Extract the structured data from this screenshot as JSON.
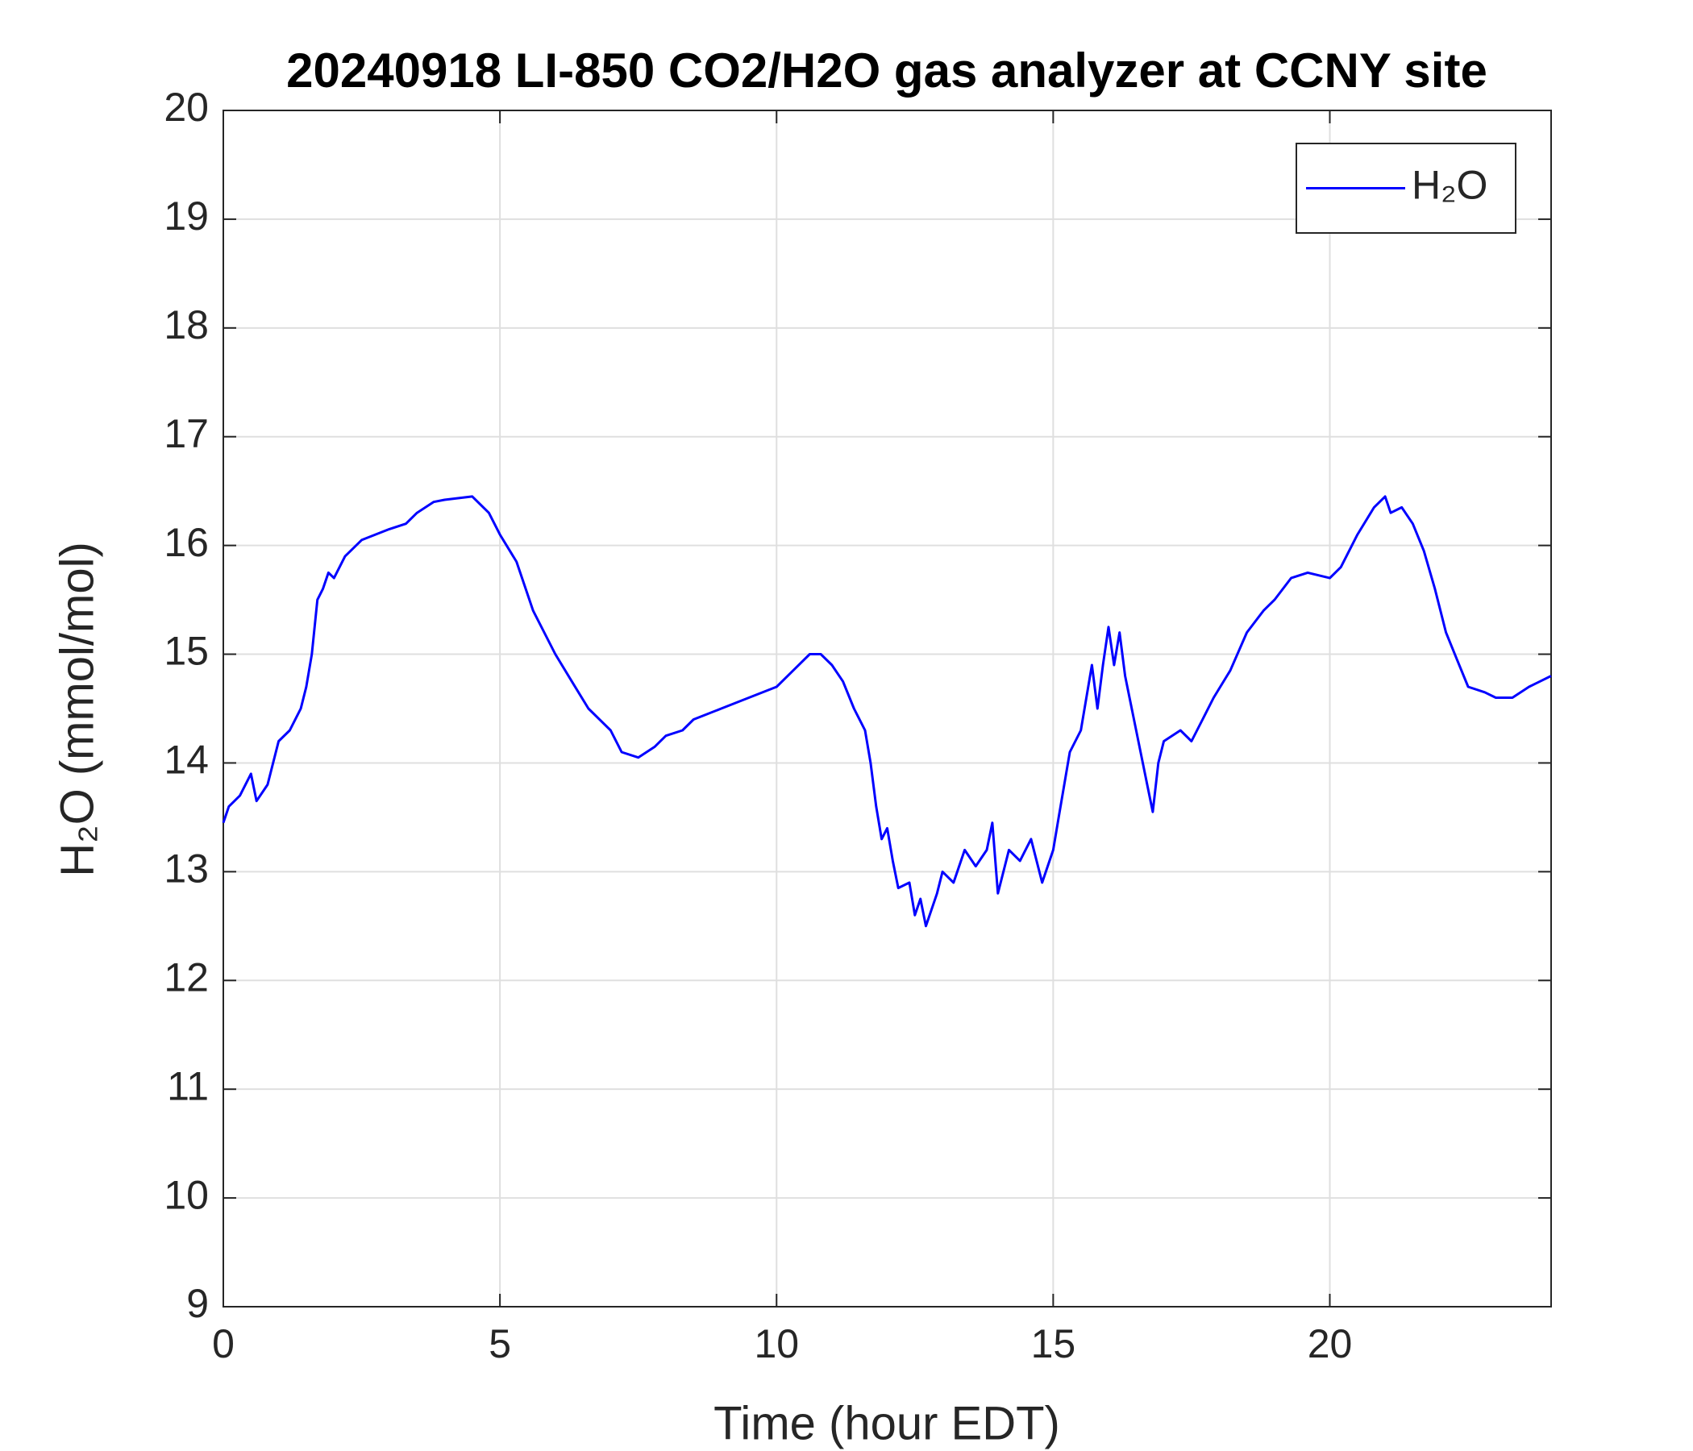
{
  "chart_data": {
    "type": "line",
    "title": "20240918 LI-850 CO2/H2O gas analyzer at CCNY site",
    "x_label": "Time (hour EDT)",
    "y_label": "H₂O (mmol/mol)",
    "xlim": [
      0,
      24
    ],
    "xticks": [
      0,
      5,
      10,
      15,
      20
    ],
    "ylim": [
      9,
      20
    ],
    "yticks": [
      9,
      10,
      11,
      12,
      13,
      14,
      15,
      16,
      17,
      18,
      19,
      20
    ],
    "grid": true,
    "legend": "upper right",
    "x": [
      0,
      0.1,
      0.3,
      0.5,
      0.6,
      0.8,
      1.0,
      1.2,
      1.4,
      1.5,
      1.6,
      1.7,
      1.8,
      1.9,
      2.0,
      2.2,
      2.5,
      3.0,
      3.3,
      3.5,
      3.8,
      4.0,
      4.5,
      4.8,
      5.0,
      5.3,
      5.6,
      6.0,
      6.3,
      6.6,
      7.0,
      7.2,
      7.5,
      7.8,
      8.0,
      8.3,
      8.5,
      9.0,
      9.5,
      10.0,
      10.3,
      10.6,
      10.8,
      11.0,
      11.2,
      11.4,
      11.6,
      11.7,
      11.8,
      11.9,
      12.0,
      12.1,
      12.2,
      12.4,
      12.5,
      12.6,
      12.7,
      12.9,
      13.0,
      13.2,
      13.4,
      13.6,
      13.8,
      13.9,
      14.0,
      14.2,
      14.4,
      14.6,
      14.8,
      15.0,
      15.1,
      15.3,
      15.5,
      15.7,
      15.8,
      15.9,
      16.0,
      16.1,
      16.2,
      16.3,
      16.5,
      16.7,
      16.8,
      16.9,
      17.0,
      17.3,
      17.5,
      17.7,
      17.9,
      18.2,
      18.5,
      18.8,
      19.0,
      19.3,
      19.6,
      20.0,
      20.2,
      20.5,
      20.8,
      21.0,
      21.1,
      21.3,
      21.5,
      21.7,
      21.9,
      22.1,
      22.3,
      22.5,
      22.8,
      23.0,
      23.3,
      23.6,
      24.0
    ],
    "series": [
      {
        "name": "H₂O",
        "color": "#0000ff",
        "values": [
          13.45,
          13.6,
          13.7,
          13.9,
          13.65,
          13.8,
          14.2,
          14.3,
          14.5,
          14.7,
          15.0,
          15.5,
          15.6,
          15.75,
          15.7,
          15.9,
          16.05,
          16.15,
          16.2,
          16.3,
          16.4,
          16.42,
          16.45,
          16.3,
          16.1,
          15.85,
          15.4,
          15.0,
          14.75,
          14.5,
          14.3,
          14.1,
          14.05,
          14.15,
          14.25,
          14.3,
          14.4,
          14.5,
          14.6,
          14.7,
          14.85,
          15.0,
          15.0,
          14.9,
          14.75,
          14.5,
          14.3,
          14.0,
          13.6,
          13.3,
          13.4,
          13.1,
          12.85,
          12.9,
          12.6,
          12.75,
          12.5,
          12.8,
          13.0,
          12.9,
          13.2,
          13.05,
          13.2,
          13.45,
          12.8,
          13.2,
          13.1,
          13.3,
          12.9,
          13.2,
          13.5,
          14.1,
          14.3,
          14.9,
          14.5,
          14.9,
          15.25,
          14.9,
          15.2,
          14.8,
          14.3,
          13.8,
          13.55,
          14.0,
          14.2,
          14.3,
          14.2,
          14.4,
          14.6,
          14.85,
          15.2,
          15.4,
          15.5,
          15.7,
          15.75,
          15.7,
          15.8,
          16.1,
          16.35,
          16.45,
          16.3,
          16.35,
          16.2,
          15.95,
          15.6,
          15.2,
          14.95,
          14.7,
          14.65,
          14.6,
          14.6,
          14.7,
          14.8
        ]
      }
    ]
  }
}
